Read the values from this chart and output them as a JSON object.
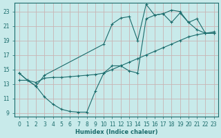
{
  "xlabel": "Humidex (Indice chaleur)",
  "bg_color": "#c8eaea",
  "grid_color": "#c8b4b4",
  "line_color": "#1a6b6b",
  "xlim": [
    -0.5,
    23.5
  ],
  "ylim": [
    8.5,
    24.2
  ],
  "xticks": [
    0,
    1,
    2,
    3,
    4,
    5,
    6,
    7,
    8,
    9,
    10,
    11,
    12,
    13,
    14,
    15,
    16,
    17,
    18,
    19,
    20,
    21,
    22,
    23
  ],
  "yticks": [
    9,
    11,
    13,
    15,
    17,
    19,
    21,
    23
  ],
  "line_bottom_x": [
    0,
    1,
    2,
    3,
    4,
    5,
    6,
    7,
    8,
    9,
    10,
    11,
    12,
    13,
    14,
    15,
    16,
    17,
    18,
    19,
    20,
    21,
    22,
    23
  ],
  "line_bottom_y": [
    14.5,
    13.5,
    12.7,
    11.2,
    10.2,
    9.5,
    9.2,
    9.1,
    9.1,
    12.0,
    14.5,
    15.5,
    15.5,
    14.8,
    14.5,
    22.0,
    22.5,
    22.7,
    23.2,
    23.0,
    21.5,
    20.5,
    20.0,
    20.0
  ],
  "line_straight_x": [
    0,
    1,
    2,
    3,
    4,
    5,
    6,
    7,
    8,
    9,
    10,
    11,
    12,
    13,
    14,
    15,
    16,
    17,
    18,
    19,
    20,
    21,
    22,
    23
  ],
  "line_straight_y": [
    13.5,
    13.5,
    13.2,
    13.8,
    13.9,
    13.9,
    14.0,
    14.1,
    14.2,
    14.3,
    14.5,
    15.0,
    15.5,
    16.0,
    16.5,
    17.0,
    17.5,
    18.0,
    18.5,
    19.0,
    19.5,
    19.8,
    20.0,
    20.0
  ],
  "line_upper_x": [
    0,
    1,
    2,
    3,
    10,
    11,
    12,
    13,
    14,
    15,
    16,
    17,
    18,
    19,
    20,
    21,
    22,
    23
  ],
  "line_upper_y": [
    14.5,
    13.5,
    12.7,
    14.2,
    18.5,
    21.3,
    22.1,
    22.3,
    19.0,
    24.0,
    22.5,
    22.7,
    21.5,
    22.8,
    21.5,
    22.0,
    20.0,
    20.2
  ]
}
